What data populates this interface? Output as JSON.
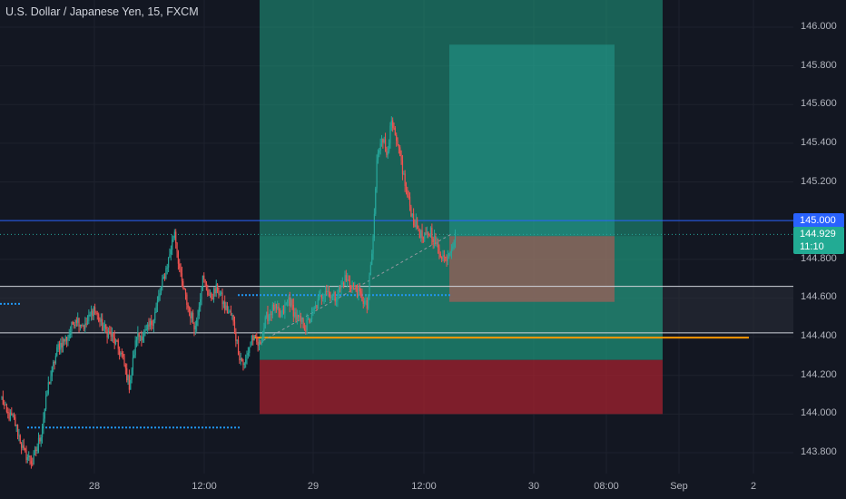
{
  "header": {
    "title": "U.S. Dollar / Japanese Yen, 15, FXCM"
  },
  "colors": {
    "background": "#131722",
    "up_candle": "#26a69a",
    "down_candle": "#ef5350",
    "profit_zone": "#1f9f82",
    "loss_zone": "#a3222f",
    "hline_blue": "#2962ff",
    "hline_white": "#d1d4dc",
    "orange_line": "#ff9800",
    "current_price_badge": "#22ab94",
    "blue_price_badge": "#2962ff"
  },
  "price_axis": {
    "ticks": [
      "146.000",
      "145.800",
      "145.600",
      "145.400",
      "145.200",
      "144.800",
      "144.600",
      "144.400",
      "144.200",
      "144.000",
      "143.800"
    ],
    "blue_line_label": "145.000",
    "current_price": "144.929",
    "countdown": "11:10"
  },
  "time_axis": {
    "ticks": [
      "28",
      "12:00",
      "29",
      "12:00",
      "30",
      "08:00",
      "Sep",
      "2"
    ]
  },
  "chart_data": {
    "type": "candlestick",
    "symbol": "U.S. Dollar / Japanese Yen",
    "timeframe": "15",
    "source": "FXCM",
    "ylim": [
      143.72,
      146.12
    ],
    "horizontal_levels": [
      145.0,
      144.66,
      144.42,
      144.57
    ],
    "position_tool_large": {
      "entry": 144.28,
      "stop": 144.0,
      "target": 146.12
    },
    "position_tool_small": {
      "entry": 144.92,
      "stop": 144.58,
      "target": 145.91
    },
    "orange_line_level": 144.395,
    "waypoints": [
      [
        0,
        144.08
      ],
      [
        4,
        144.0
      ],
      [
        10,
        143.97
      ],
      [
        18,
        143.8
      ],
      [
        25,
        143.75
      ],
      [
        32,
        143.9
      ],
      [
        38,
        144.15
      ],
      [
        46,
        144.35
      ],
      [
        54,
        144.4
      ],
      [
        60,
        144.5
      ],
      [
        68,
        144.45
      ],
      [
        75,
        144.55
      ],
      [
        82,
        144.45
      ],
      [
        90,
        144.4
      ],
      [
        98,
        144.3
      ],
      [
        104,
        144.15
      ],
      [
        110,
        144.4
      ],
      [
        118,
        144.42
      ],
      [
        124,
        144.5
      ],
      [
        130,
        144.65
      ],
      [
        136,
        144.8
      ],
      [
        141,
        144.95
      ],
      [
        146,
        144.7
      ],
      [
        152,
        144.55
      ],
      [
        158,
        144.45
      ],
      [
        164,
        144.7
      ],
      [
        170,
        144.6
      ],
      [
        176,
        144.65
      ],
      [
        182,
        144.55
      ],
      [
        188,
        144.5
      ],
      [
        194,
        144.3
      ],
      [
        198,
        144.25
      ],
      [
        204,
        144.4
      ],
      [
        210,
        144.35
      ],
      [
        216,
        144.5
      ],
      [
        222,
        144.55
      ],
      [
        228,
        144.5
      ],
      [
        234,
        144.6
      ],
      [
        240,
        144.5
      ],
      [
        248,
        144.45
      ],
      [
        256,
        144.55
      ],
      [
        264,
        144.65
      ],
      [
        272,
        144.6
      ],
      [
        280,
        144.7
      ],
      [
        288,
        144.65
      ],
      [
        294,
        144.6
      ],
      [
        298,
        144.55
      ],
      [
        303,
        144.9
      ],
      [
        306,
        145.3
      ],
      [
        310,
        145.45
      ],
      [
        314,
        145.35
      ],
      [
        318,
        145.5
      ],
      [
        322,
        145.4
      ],
      [
        326,
        145.3
      ],
      [
        330,
        145.15
      ],
      [
        336,
        145.0
      ],
      [
        344,
        144.9
      ],
      [
        350,
        144.95
      ],
      [
        356,
        144.85
      ],
      [
        362,
        144.8
      ],
      [
        370,
        144.92
      ]
    ]
  }
}
